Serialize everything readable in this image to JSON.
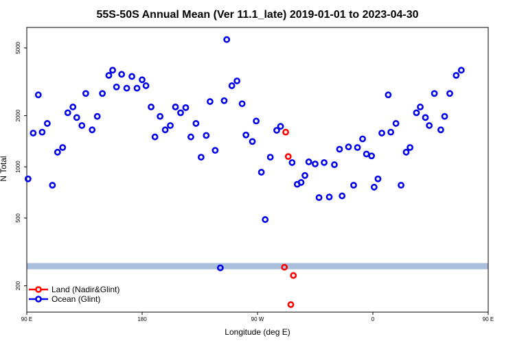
{
  "chart_data": {
    "type": "scatter",
    "title": "55S-50S Annual Mean (Ver 11.1_late)   2019-01-01 to 2023-04-30",
    "xlabel": "Longitude (deg E)",
    "ylabel": "N Total",
    "y_scale": "log",
    "xlim": [
      90,
      450
    ],
    "ylim": [
      140,
      6600
    ],
    "x_ticks": [
      {
        "value": 90,
        "label": "90 E"
      },
      {
        "value": 180,
        "label": "180"
      },
      {
        "value": 270,
        "label": "90 W"
      },
      {
        "value": 360,
        "label": "0"
      },
      {
        "value": 450,
        "label": "90 E"
      }
    ],
    "y_ticks": [
      {
        "value": 200,
        "label": "200"
      },
      {
        "value": 500,
        "label": "500"
      },
      {
        "value": 1000,
        "label": "1000"
      },
      {
        "value": 2000,
        "label": "2000"
      },
      {
        "value": 5000,
        "label": "5000"
      }
    ],
    "band": {
      "y_from": 250,
      "y_to": 272,
      "color": "#aabfdc"
    },
    "legend_position": "bottom-left",
    "series": [
      {
        "name": "Land (Nadir&Glint)",
        "color": "#ff0000",
        "points": [
          {
            "x": 292,
            "y": 1600
          },
          {
            "x": 294,
            "y": 1150
          },
          {
            "x": 291,
            "y": 257
          },
          {
            "x": 298,
            "y": 230
          },
          {
            "x": 296,
            "y": 155
          }
        ]
      },
      {
        "name": "Ocean (Glint)",
        "color": "#0000ee",
        "points": [
          {
            "x": 91,
            "y": 850
          },
          {
            "x": 95,
            "y": 1580
          },
          {
            "x": 99,
            "y": 2650
          },
          {
            "x": 102,
            "y": 1600
          },
          {
            "x": 106,
            "y": 1800
          },
          {
            "x": 110,
            "y": 780
          },
          {
            "x": 114,
            "y": 1220
          },
          {
            "x": 118,
            "y": 1300
          },
          {
            "x": 122,
            "y": 2080
          },
          {
            "x": 126,
            "y": 2250
          },
          {
            "x": 129,
            "y": 1950
          },
          {
            "x": 133,
            "y": 1750
          },
          {
            "x": 136,
            "y": 2700
          },
          {
            "x": 141,
            "y": 1650
          },
          {
            "x": 145,
            "y": 1980
          },
          {
            "x": 149,
            "y": 2700
          },
          {
            "x": 154,
            "y": 3450
          },
          {
            "x": 157,
            "y": 3700
          },
          {
            "x": 160,
            "y": 2950
          },
          {
            "x": 164,
            "y": 3500
          },
          {
            "x": 168,
            "y": 2900
          },
          {
            "x": 172,
            "y": 3400
          },
          {
            "x": 176,
            "y": 2900
          },
          {
            "x": 180,
            "y": 3250
          },
          {
            "x": 183,
            "y": 3000
          },
          {
            "x": 187,
            "y": 2250
          },
          {
            "x": 190,
            "y": 1500
          },
          {
            "x": 194,
            "y": 1980
          },
          {
            "x": 198,
            "y": 1650
          },
          {
            "x": 202,
            "y": 1750
          },
          {
            "x": 206,
            "y": 2250
          },
          {
            "x": 210,
            "y": 2080
          },
          {
            "x": 214,
            "y": 2230
          },
          {
            "x": 218,
            "y": 1500
          },
          {
            "x": 222,
            "y": 1800
          },
          {
            "x": 226,
            "y": 1140
          },
          {
            "x": 230,
            "y": 1530
          },
          {
            "x": 233,
            "y": 2420
          },
          {
            "x": 237,
            "y": 1250
          },
          {
            "x": 241,
            "y": 255
          },
          {
            "x": 244,
            "y": 2450
          },
          {
            "x": 246,
            "y": 5600
          },
          {
            "x": 250,
            "y": 3000
          },
          {
            "x": 254,
            "y": 3200
          },
          {
            "x": 258,
            "y": 2350
          },
          {
            "x": 261,
            "y": 1540
          },
          {
            "x": 266,
            "y": 1410
          },
          {
            "x": 269,
            "y": 1860
          },
          {
            "x": 273,
            "y": 930
          },
          {
            "x": 276,
            "y": 490
          },
          {
            "x": 280,
            "y": 1140
          },
          {
            "x": 285,
            "y": 1640
          },
          {
            "x": 288,
            "y": 1730
          },
          {
            "x": 297,
            "y": 1060
          },
          {
            "x": 301,
            "y": 790
          },
          {
            "x": 304,
            "y": 810
          },
          {
            "x": 307,
            "y": 890
          },
          {
            "x": 310,
            "y": 1070
          },
          {
            "x": 315,
            "y": 1040
          },
          {
            "x": 318,
            "y": 660
          },
          {
            "x": 322,
            "y": 1060
          },
          {
            "x": 326,
            "y": 665
          },
          {
            "x": 330,
            "y": 1030
          },
          {
            "x": 334,
            "y": 1270
          },
          {
            "x": 336,
            "y": 675
          },
          {
            "x": 341,
            "y": 1310
          },
          {
            "x": 345,
            "y": 780
          },
          {
            "x": 348,
            "y": 1300
          },
          {
            "x": 352,
            "y": 1460
          },
          {
            "x": 355,
            "y": 1190
          },
          {
            "x": 359,
            "y": 1160
          },
          {
            "x": 361,
            "y": 760
          },
          {
            "x": 364,
            "y": 850
          },
          {
            "x": 367,
            "y": 1580
          },
          {
            "x": 372,
            "y": 2650
          },
          {
            "x": 374,
            "y": 1600
          },
          {
            "x": 378,
            "y": 1800
          },
          {
            "x": 382,
            "y": 780
          },
          {
            "x": 386,
            "y": 1220
          },
          {
            "x": 389,
            "y": 1300
          },
          {
            "x": 394,
            "y": 2080
          },
          {
            "x": 397,
            "y": 2250
          },
          {
            "x": 401,
            "y": 1950
          },
          {
            "x": 404,
            "y": 1750
          },
          {
            "x": 408,
            "y": 2700
          },
          {
            "x": 413,
            "y": 1650
          },
          {
            "x": 416,
            "y": 1980
          },
          {
            "x": 420,
            "y": 2700
          },
          {
            "x": 425,
            "y": 3450
          },
          {
            "x": 429,
            "y": 3700
          }
        ]
      }
    ]
  }
}
